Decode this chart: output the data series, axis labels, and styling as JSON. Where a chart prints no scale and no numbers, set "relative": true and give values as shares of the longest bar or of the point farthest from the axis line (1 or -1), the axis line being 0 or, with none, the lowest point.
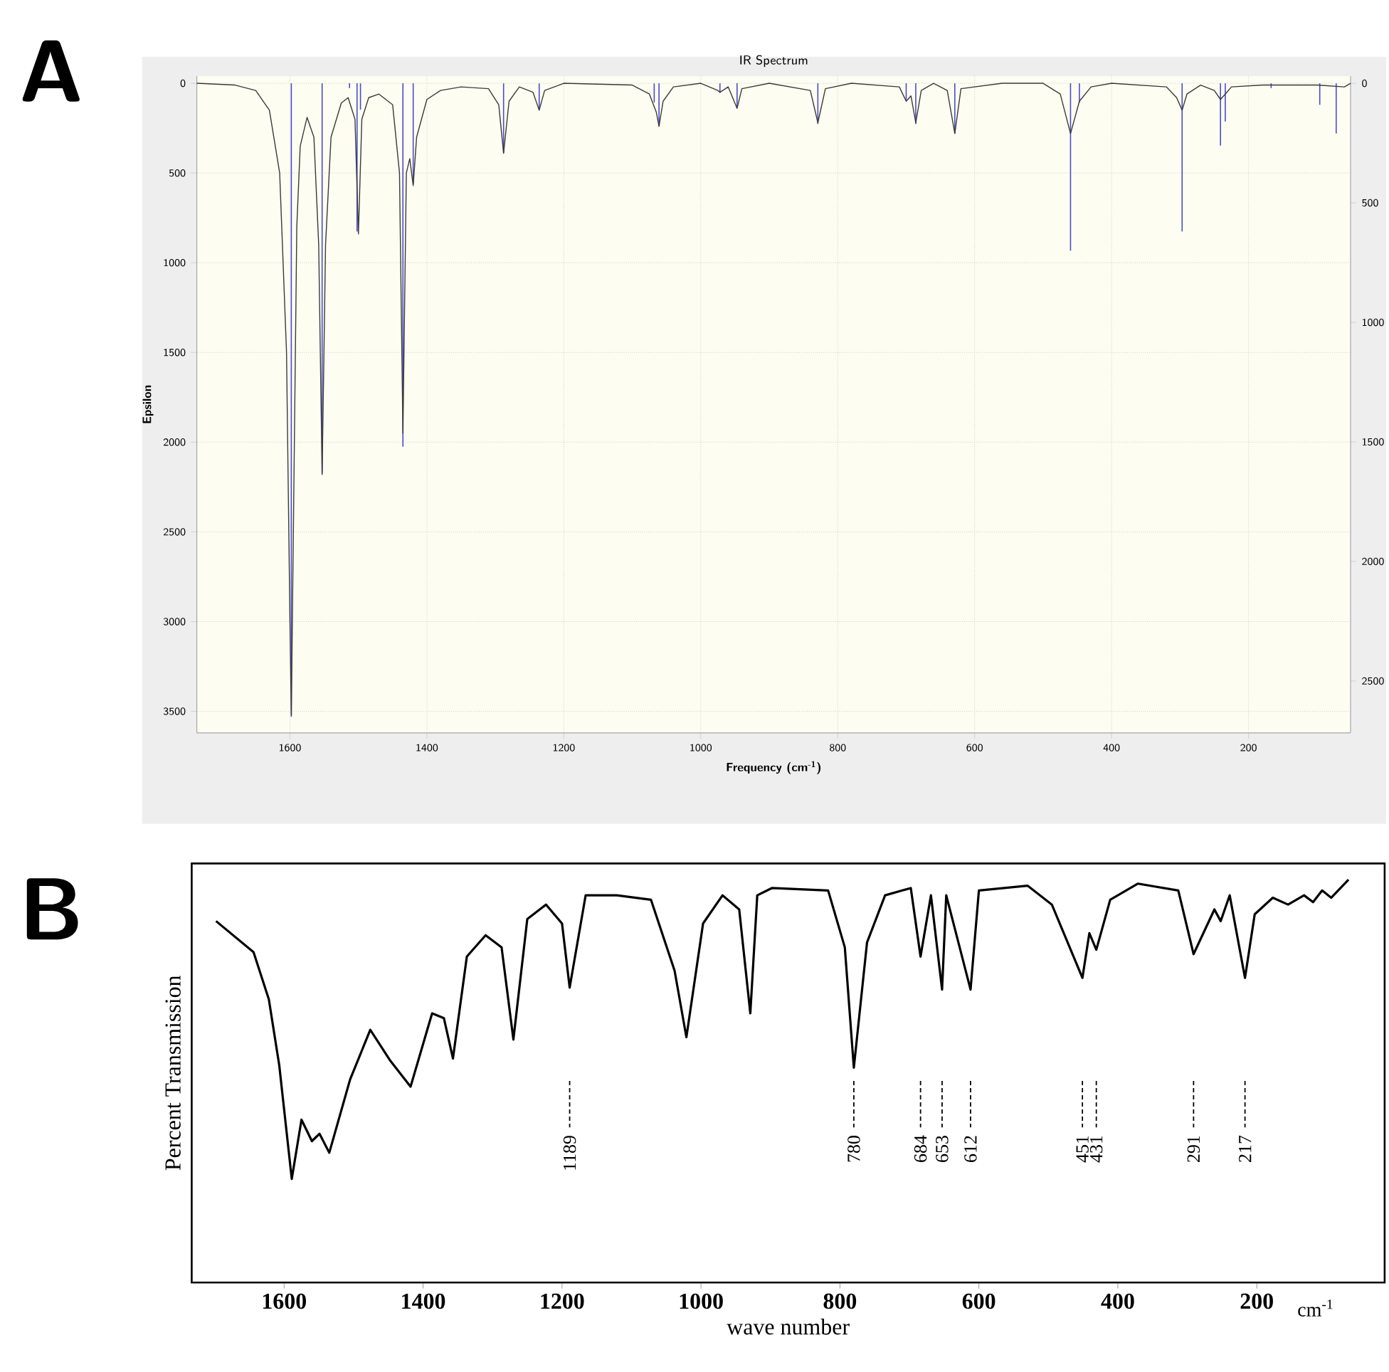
{
  "chart_data": [
    {
      "type": "line",
      "title": "IR Spectrum",
      "xlabel": "Frequency (cm$^{-1}$)",
      "ylabel": "Epsilon",
      "xlim": [
        1736,
        51
      ],
      "ylim": [
        3620,
        -40
      ],
      "xticks": [
        1600,
        1400,
        1200,
        1000,
        800,
        600,
        400,
        200
      ],
      "yticks": [
        0,
        500,
        1000,
        1500,
        2000,
        2500,
        3000,
        3500
      ],
      "y2lim": [
        2717,
        -30
      ],
      "y2ticks": [
        0,
        500,
        1000,
        1500,
        2000,
        2500
      ],
      "grid": true,
      "annotations": [
        "A"
      ],
      "series": [
        {
          "color": "#3a3a3a",
          "x": [
            1736,
            1680,
            1650,
            1630,
            1615,
            1605,
            1600,
            1598,
            1595,
            1590,
            1585,
            1575,
            1565,
            1558,
            1553,
            1548,
            1540,
            1525,
            1515,
            1505,
            1500,
            1495,
            1485,
            1470,
            1450,
            1440,
            1435,
            1430,
            1425,
            1420,
            1415,
            1400,
            1380,
            1350,
            1310,
            1295,
            1288,
            1280,
            1265,
            1245,
            1236,
            1228,
            1200,
            1100,
            1075,
            1065,
            1061,
            1055,
            1040,
            1000,
            975,
            972,
            960,
            947,
            940,
            900,
            840,
            829,
            818,
            780,
            710,
            700,
            693,
            686,
            678,
            660,
            640,
            629,
            620,
            560,
            500,
            475,
            460,
            447,
            430,
            400,
            320,
            305,
            297,
            290,
            270,
            250,
            241,
            234,
            225,
            180,
            100,
            60,
            51
          ],
          "values": [
            0,
            10,
            40,
            150,
            500,
            1500,
            3000,
            3520,
            2500,
            800,
            350,
            190,
            300,
            900,
            2180,
            900,
            300,
            110,
            80,
            200,
            840,
            200,
            80,
            60,
            120,
            500,
            1950,
            500,
            420,
            570,
            300,
            90,
            40,
            20,
            30,
            120,
            390,
            100,
            20,
            50,
            150,
            40,
            0,
            10,
            60,
            160,
            240,
            100,
            20,
            0,
            40,
            50,
            20,
            140,
            30,
            0,
            40,
            220,
            30,
            0,
            20,
            100,
            70,
            220,
            40,
            0,
            40,
            280,
            30,
            0,
            0,
            60,
            280,
            100,
            20,
            0,
            20,
            80,
            150,
            60,
            10,
            40,
            90,
            60,
            20,
            10,
            10,
            20,
            0
          ]
        },
        {
          "type": "bar",
          "axis": "y2",
          "color": "#4b4bc8",
          "x": [
            1598,
            1553,
            1513,
            1502,
            1497,
            1435,
            1420,
            1288,
            1236,
            1068,
            1061,
            972,
            947,
            829,
            700,
            686,
            629,
            460,
            447,
            297,
            241,
            234,
            167,
            96,
            72
          ],
          "values": [
            2650,
            1630,
            20,
            620,
            110,
            1520,
            420,
            290,
            110,
            80,
            180,
            40,
            100,
            170,
            70,
            170,
            210,
            700,
            80,
            620,
            260,
            160,
            20,
            90,
            210
          ]
        }
      ]
    },
    {
      "type": "line",
      "xlabel": "wave number",
      "ylabel": "Percent Transmission",
      "xlim": [
        1733,
        16
      ],
      "xticks": [
        1600,
        1400,
        1200,
        1000,
        800,
        600,
        400,
        200
      ],
      "relative": true,
      "annotations": [
        "B",
        "cm$^{-1}$",
        {
          "text": "1189",
          "x": 1189
        },
        {
          "text": "780",
          "x": 780
        },
        {
          "text": "684",
          "x": 684
        },
        {
          "text": "653",
          "x": 653
        },
        {
          "text": "612",
          "x": 612
        },
        {
          "text": "451",
          "x": 451
        },
        {
          "text": "431",
          "x": 431
        },
        {
          "text": "291",
          "x": 291
        },
        {
          "text": "217",
          "x": 217
        }
      ],
      "series": [
        {
          "color": "#000000",
          "x": [
            1698,
            1644,
            1622,
            1607,
            1589,
            1575,
            1560,
            1549,
            1535,
            1505,
            1476,
            1447,
            1418,
            1387,
            1370,
            1357,
            1337,
            1310,
            1287,
            1270,
            1250,
            1223,
            1200,
            1189,
            1166,
            1121,
            1072,
            1038,
            1021,
            997,
            969,
            945,
            929,
            919,
            898,
            817,
            793,
            780,
            761,
            735,
            698,
            684,
            669,
            653,
            647,
            612,
            600,
            530,
            495,
            451,
            441,
            431,
            411,
            371,
            313,
            291,
            261,
            252,
            239,
            217,
            203,
            177,
            155,
            132,
            119,
            106,
            93,
            68
          ],
          "values": [
            0.897,
            0.82,
            0.703,
            0.539,
            0.257,
            0.404,
            0.351,
            0.369,
            0.322,
            0.504,
            0.627,
            0.55,
            0.486,
            0.668,
            0.656,
            0.556,
            0.809,
            0.862,
            0.832,
            0.603,
            0.902,
            0.938,
            0.891,
            0.732,
            0.961,
            0.961,
            0.95,
            0.774,
            0.609,
            0.891,
            0.961,
            0.926,
            0.668,
            0.961,
            0.979,
            0.973,
            0.832,
            0.533,
            0.844,
            0.961,
            0.979,
            0.809,
            0.961,
            0.727,
            0.961,
            0.727,
            0.973,
            0.985,
            0.938,
            0.756,
            0.867,
            0.826,
            0.95,
            0.99,
            0.973,
            0.815,
            0.926,
            0.897,
            0.961,
            0.756,
            0.914,
            0.955,
            0.938,
            0.961,
            0.944,
            0.973,
            0.955,
            1.0
          ]
        }
      ]
    }
  ]
}
